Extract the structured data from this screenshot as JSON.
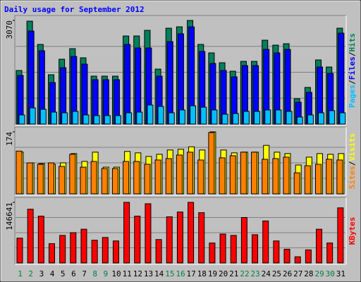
{
  "chart_data": {
    "type": "bar",
    "title": "Daily usage for September 2012",
    "categories": [
      "1",
      "2",
      "3",
      "4",
      "5",
      "6",
      "7",
      "8",
      "9",
      "10",
      "11",
      "12",
      "13",
      "14",
      "15",
      "16",
      "17",
      "18",
      "19",
      "20",
      "21",
      "22",
      "23",
      "24",
      "25",
      "26",
      "27",
      "28",
      "29",
      "30",
      "31"
    ],
    "category_colors": [
      "#008040",
      "#008040",
      "#000000",
      "#000000",
      "#000000",
      "#000000",
      "#000000",
      "#008040",
      "#008040",
      "#000000",
      "#000000",
      "#000000",
      "#000000",
      "#000000",
      "#008040",
      "#008040",
      "#000000",
      "#000000",
      "#000000",
      "#000000",
      "#000000",
      "#008040",
      "#008040",
      "#000000",
      "#000000",
      "#000000",
      "#000000",
      "#000000",
      "#008040",
      "#008040",
      "#000000"
    ],
    "legend_separator": "/",
    "panels": [
      {
        "ylim": [
          0,
          3070
        ],
        "yticks": [
          3070
        ],
        "series": [
          {
            "name": "Hits",
            "color": "#00805c",
            "values": [
              1587,
              3049,
              2360,
              1462,
              1921,
              2234,
              1963,
              1420,
              1420,
              1420,
              2610,
              2610,
              2777,
              1629,
              2840,
              2882,
              3070,
              2360,
              2109,
              1817,
              1566,
              1858,
              1858,
              2485,
              2339,
              2380,
              752,
              1086,
              1900,
              1691,
              2840
            ]
          },
          {
            "name": "Files",
            "color": "#0000ff",
            "values": [
              1441,
              2756,
              2172,
              1232,
              1670,
              2004,
              1775,
              1315,
              1315,
              1315,
              2359,
              2255,
              2255,
              1420,
              2443,
              2673,
              2881,
              2151,
              1796,
              1587,
              1399,
              1733,
              1733,
              2213,
              2109,
              2213,
              647,
              940,
              1691,
              1503,
              2694
            ]
          },
          {
            "name": "Pages",
            "color": "#00c0ff",
            "values": [
              271,
              480,
              438,
              355,
              334,
              376,
              271,
              251,
              251,
              251,
              334,
              355,
              564,
              522,
              334,
              418,
              543,
              501,
              418,
              292,
              313,
              376,
              376,
              418,
              418,
              376,
              209,
              271,
              334,
              397,
              334
            ]
          }
        ]
      },
      {
        "ylim": [
          0,
          174
        ],
        "yticks": [
          174
        ],
        "series": [
          {
            "name": "Visits",
            "color": "#ffff00",
            "values": [
              117,
              87,
              85,
              83,
              87,
              113,
              91,
              117,
              75,
              75,
              119,
              115,
              105,
              111,
              123,
              125,
              132,
              123,
              174,
              123,
              115,
              117,
              117,
              136,
              117,
              113,
              81,
              103,
              113,
              111,
              113
            ]
          },
          {
            "name": "Sites",
            "color": "#ff8000",
            "values": [
              120,
              87,
              83,
              87,
              77,
              111,
              75,
              91,
              71,
              71,
              91,
              91,
              83,
              95,
              99,
              109,
              117,
              95,
              172,
              101,
              107,
              117,
              117,
              97,
              99,
              103,
              59,
              79,
              83,
              97,
              95
            ]
          }
        ]
      },
      {
        "ylim": [
          0,
          146641
        ],
        "yticks": [
          146641
        ],
        "series": [
          {
            "name": "KBytes",
            "color": "#ff0000",
            "values": [
              59990,
              129979,
              113315,
              46659,
              66656,
              73322,
              81654,
              54991,
              61657,
              53325,
              146641,
              113315,
              143310,
              56658,
              111649,
              123314,
              146641,
              121647,
              48326,
              69989,
              66656,
              109982,
              68322,
              101650,
              53325,
              33328,
              14998,
              31662,
              81654,
              48326,
              133312
            ]
          }
        ]
      }
    ]
  }
}
